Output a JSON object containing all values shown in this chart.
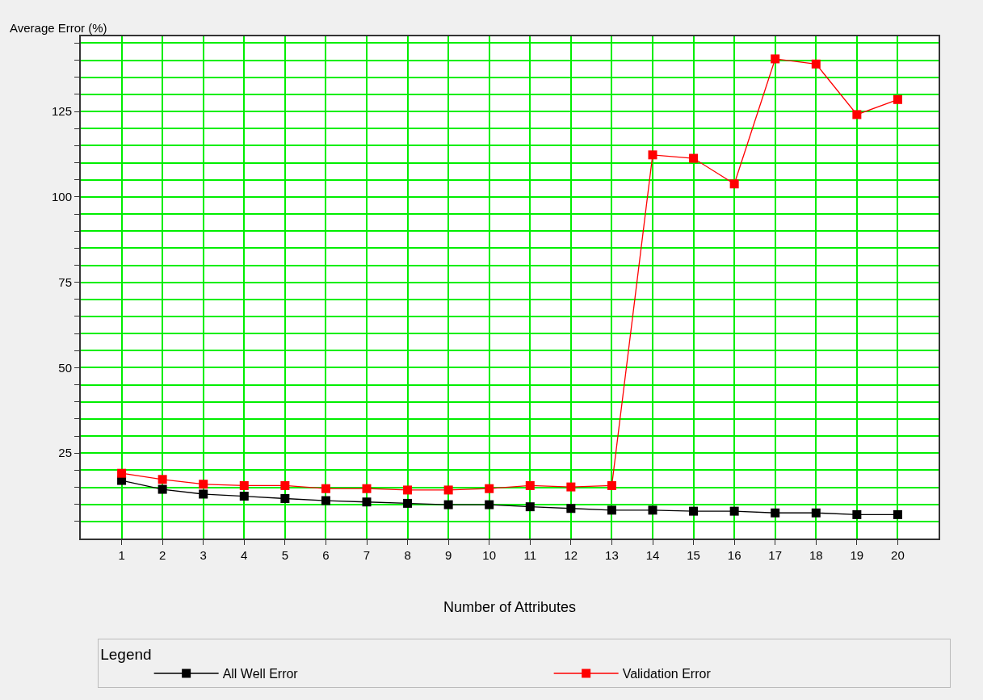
{
  "chart_data": {
    "type": "line",
    "xlabel": "Number of Attributes",
    "ylabel": "Average Error (%)",
    "legend_title": "Legend",
    "x": [
      1,
      2,
      3,
      4,
      5,
      6,
      7,
      8,
      9,
      10,
      11,
      12,
      13,
      14,
      15,
      16,
      17,
      18,
      19,
      20
    ],
    "series": [
      {
        "name": "All Well Error",
        "color": "#000000",
        "values": [
          17.0,
          14.4,
          13.0,
          12.4,
          11.7,
          11.1,
          10.7,
          10.3,
          9.9,
          9.9,
          9.3,
          8.8,
          8.3,
          8.3,
          8.0,
          8.0,
          7.5,
          7.5,
          7.0,
          7.0
        ]
      },
      {
        "name": "Validation Error",
        "color": "#ff0000",
        "values": [
          19.1,
          17.3,
          15.9,
          15.5,
          15.5,
          14.6,
          14.6,
          14.2,
          14.2,
          14.6,
          15.5,
          15.1,
          15.5,
          112.3,
          111.3,
          103.8,
          140.4,
          138.9,
          124.1,
          128.5
        ]
      }
    ],
    "xlim": [
      0,
      21
    ],
    "xticks": [
      1,
      2,
      3,
      4,
      5,
      6,
      7,
      8,
      9,
      10,
      11,
      12,
      13,
      14,
      15,
      16,
      17,
      18,
      19,
      20
    ],
    "ylim": [
      0,
      147
    ],
    "yticks": [
      {
        "value": 5,
        "label": null
      },
      {
        "value": 10,
        "label": null
      },
      {
        "value": 15,
        "label": null
      },
      {
        "value": 20,
        "label": null
      },
      25,
      {
        "value": 30,
        "label": null
      },
      {
        "value": 35,
        "label": null
      },
      {
        "value": 40,
        "label": null
      },
      {
        "value": 45,
        "label": null
      },
      50,
      {
        "value": 55,
        "label": null
      },
      {
        "value": 60,
        "label": null
      },
      {
        "value": 65,
        "label": null
      },
      {
        "value": 70,
        "label": null
      },
      75,
      {
        "value": 80,
        "label": null
      },
      {
        "value": 85,
        "label": null
      },
      {
        "value": 90,
        "label": null
      },
      {
        "value": 95,
        "label": null
      },
      100,
      {
        "value": 105,
        "label": null
      },
      {
        "value": 110,
        "label": null
      },
      {
        "value": 115,
        "label": null
      },
      {
        "value": 120,
        "label": null
      },
      125,
      {
        "value": 130,
        "label": null
      },
      {
        "value": 135,
        "label": null
      },
      {
        "value": 140,
        "label": null
      },
      {
        "value": 145,
        "label": null
      }
    ],
    "grid": true,
    "legend": "bottom",
    "marker": "square",
    "line_style": "solid"
  }
}
